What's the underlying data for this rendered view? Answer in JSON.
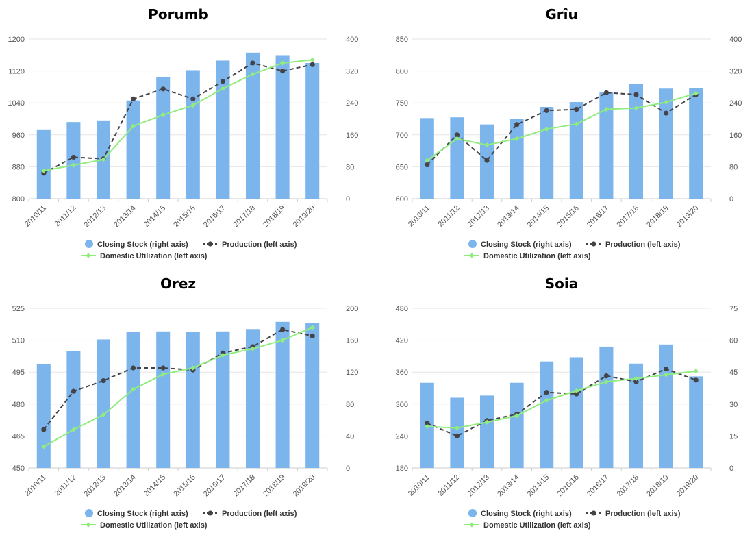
{
  "chart_data": [
    {
      "type": "bar",
      "title": "Porumb",
      "categories": [
        "2010/11",
        "2011/12",
        "2012/13",
        "2013/14",
        "2014/15",
        "2015/16",
        "2016/17",
        "2017/18",
        "2018/19",
        "2019/20"
      ],
      "left_axis": {
        "ylim": [
          800,
          1200
        ],
        "ticks": [
          800,
          880,
          960,
          1040,
          1120,
          1200
        ]
      },
      "right_axis": {
        "ylim": [
          0,
          400
        ],
        "ticks": [
          0,
          80,
          160,
          240,
          320,
          400
        ]
      },
      "series": [
        {
          "name": "Closing Stock (right axis)",
          "kind": "bar",
          "axis": "right",
          "color": "#7cb5ec",
          "values": [
            172,
            192,
            196,
            246,
            304,
            322,
            346,
            366,
            358,
            340
          ]
        },
        {
          "name": "Production (left axis)",
          "kind": "line-dashed",
          "axis": "left",
          "color": "#434348",
          "values": [
            864,
            904,
            900,
            1050,
            1075,
            1050,
            1094,
            1140,
            1120,
            1136
          ]
        },
        {
          "name": "Domestic Utilization (left axis)",
          "kind": "line",
          "axis": "left",
          "color": "#90ed7d",
          "values": [
            870,
            884,
            898,
            982,
            1010,
            1034,
            1076,
            1112,
            1140,
            1148
          ]
        }
      ],
      "legend": "bottom"
    },
    {
      "type": "bar",
      "title": "Grîu",
      "categories": [
        "2010/11",
        "2011/12",
        "2012/13",
        "2013/14",
        "2014/15",
        "2015/16",
        "2016/17",
        "2017/18",
        "2018/19",
        "2019/20"
      ],
      "left_axis": {
        "ylim": [
          600,
          850
        ],
        "ticks": [
          600,
          650,
          700,
          750,
          800,
          850
        ]
      },
      "right_axis": {
        "ylim": [
          0,
          400
        ],
        "ticks": [
          0,
          80,
          160,
          240,
          320,
          400
        ]
      },
      "series": [
        {
          "name": "Closing Stock (right axis)",
          "kind": "bar",
          "axis": "right",
          "color": "#7cb5ec",
          "values": [
            202,
            204,
            186,
            200,
            230,
            242,
            266,
            288,
            276,
            278
          ]
        },
        {
          "name": "Production (left axis)",
          "kind": "line-dashed",
          "axis": "left",
          "color": "#434348",
          "values": [
            653,
            700,
            660,
            716,
            738,
            740,
            766,
            763,
            734,
            763
          ]
        },
        {
          "name": "Domestic Utilization (left axis)",
          "kind": "line",
          "axis": "left",
          "color": "#90ed7d",
          "values": [
            660,
            694,
            684,
            694,
            709,
            717,
            740,
            742,
            751,
            765
          ]
        }
      ],
      "legend": "bottom"
    },
    {
      "type": "bar",
      "title": "Orez",
      "categories": [
        "2010/11",
        "2011/12",
        "2012/13",
        "2013/14",
        "2014/15",
        "2015/16",
        "2016/17",
        "2017/18",
        "2018/19",
        "2019/20"
      ],
      "left_axis": {
        "ylim": [
          450,
          525
        ],
        "ticks": [
          450,
          465,
          480,
          495,
          510,
          525
        ]
      },
      "right_axis": {
        "ylim": [
          0,
          200
        ],
        "ticks": [
          0,
          40,
          80,
          120,
          160,
          200
        ]
      },
      "series": [
        {
          "name": "Closing Stock (right axis)",
          "kind": "bar",
          "axis": "right",
          "color": "#7cb5ec",
          "values": [
            130,
            146,
            161,
            170,
            171,
            170,
            171,
            174,
            183,
            182
          ]
        },
        {
          "name": "Production (left axis)",
          "kind": "line-dashed",
          "axis": "left",
          "color": "#434348",
          "values": [
            468,
            486,
            491,
            497,
            497,
            496,
            504,
            507,
            515,
            512
          ]
        },
        {
          "name": "Domestic Utilization (left axis)",
          "kind": "line",
          "axis": "left",
          "color": "#90ed7d",
          "values": [
            460,
            468,
            475,
            487,
            494,
            497,
            503,
            506,
            510,
            516
          ]
        }
      ],
      "legend": "bottom"
    },
    {
      "type": "bar",
      "title": "Soia",
      "categories": [
        "2010/11",
        "2011/12",
        "2012/13",
        "2013/14",
        "2014/15",
        "2015/16",
        "2016/17",
        "2017/18",
        "2018/19",
        "2019/20"
      ],
      "left_axis": {
        "ylim": [
          180,
          480
        ],
        "ticks": [
          180,
          240,
          300,
          360,
          420,
          480
        ]
      },
      "right_axis": {
        "ylim": [
          0,
          75
        ],
        "ticks": [
          0,
          15,
          30,
          45,
          60,
          75
        ]
      },
      "series": [
        {
          "name": "Closing Stock (right axis)",
          "kind": "bar",
          "axis": "right",
          "color": "#7cb5ec",
          "values": [
            40,
            33,
            34,
            40,
            50,
            52,
            57,
            49,
            58,
            43
          ]
        },
        {
          "name": "Production (left axis)",
          "kind": "line-dashed",
          "axis": "left",
          "color": "#434348",
          "values": [
            264,
            240,
            269,
            281,
            322,
            319,
            353,
            342,
            366,
            345
          ]
        },
        {
          "name": "Domestic Utilization (left axis)",
          "kind": "line",
          "axis": "left",
          "color": "#90ed7d",
          "values": [
            258,
            255,
            266,
            278,
            307,
            325,
            342,
            348,
            355,
            362
          ]
        }
      ],
      "legend": "bottom"
    }
  ]
}
